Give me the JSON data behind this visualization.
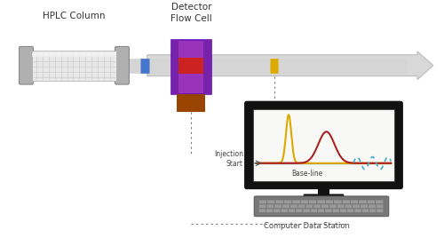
{
  "bg_color": "#ffffff",
  "hplc_label": "HPLC Column",
  "detector_label": "Detector\nFlow Cell",
  "computer_label": "Computer Data Station",
  "injection_label": "Injection\nStart",
  "baseline_label": "Base-line",
  "blue_band_color": "#4477cc",
  "red_band_color": "#cc2222",
  "yellow_band_color": "#ddaa00",
  "detector_body_color": "#9933bb",
  "detector_inner_color": "#7722aa",
  "brown_cell_color": "#994400",
  "arrow_color": "#d8d8d8",
  "monitor_color": "#111111",
  "peak1_color": "#ddaa00",
  "peak2_color": "#aa2222",
  "noise_color": "#44aacc",
  "dotted_line_color": "#777777"
}
